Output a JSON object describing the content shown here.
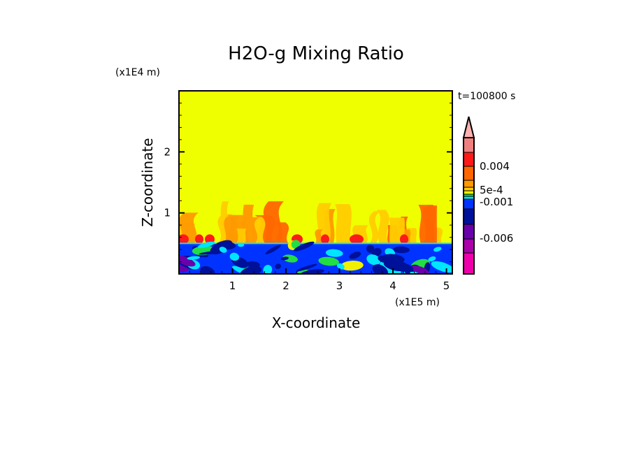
{
  "chart_data": {
    "type": "heatmap",
    "title": "H2O-g Mixing Ratio",
    "xlabel": "X-coordinate",
    "ylabel": "Z-coordinate",
    "x_unit": "(x1E5 m)",
    "y_unit": "(x1E4 m)",
    "time_label": "t=100800 s",
    "xlim": [
      0,
      5.11
    ],
    "ylim": [
      0,
      3.0
    ],
    "xticks": [
      "1",
      "2",
      "3",
      "4",
      "5"
    ],
    "yticks": [
      "1",
      "2"
    ],
    "colorbar": {
      "labels": [
        {
          "text": "0.004",
          "value": 0.004
        },
        {
          "text": "5e-4",
          "value": 0.0005
        },
        {
          "text": "-0.001",
          "value": -0.001
        },
        {
          "text": "-0.006",
          "value": -0.006
        }
      ],
      "colors": [
        "#f08080",
        "#ff1a1a",
        "#ff6600",
        "#ff9900",
        "#ffcc00",
        "#f0f000",
        "#22dd44",
        "#00e5ff",
        "#0033ff",
        "#001199",
        "#6a00aa",
        "#aa00aa",
        "#ee00aa"
      ],
      "extend_color": "#ffb0b0"
    },
    "background_value_color": "#f0ff00"
  }
}
